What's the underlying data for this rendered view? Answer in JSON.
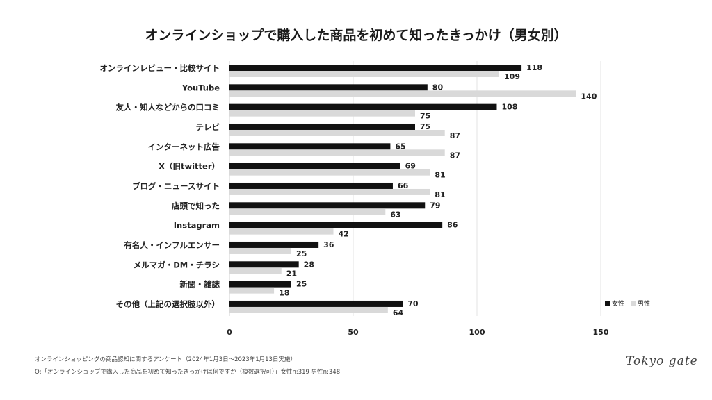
{
  "chart_data": {
    "type": "bar",
    "orientation": "horizontal",
    "title": "オンラインショップで購入した商品を初めて知ったきっかけ（男女別）",
    "categories": [
      "オンラインレビュー・比較サイト",
      "YouTube",
      "友人・知人などからの口コミ",
      "テレビ",
      "インターネット広告",
      "X（旧twitter）",
      "ブログ・ニュースサイト",
      "店頭で知った",
      "Instagram",
      "有名人・インフルエンサー",
      "メルマガ・DM・チラシ",
      "新聞・雑誌",
      "その他（上記の選択肢以外）"
    ],
    "series": [
      {
        "name": "女性",
        "color": "#111111",
        "values": [
          118,
          80,
          108,
          75,
          65,
          69,
          66,
          79,
          86,
          36,
          28,
          25,
          70
        ]
      },
      {
        "name": "男性",
        "color": "#d9d9d9",
        "values": [
          109,
          140,
          75,
          87,
          87,
          81,
          81,
          63,
          42,
          25,
          21,
          18,
          64
        ]
      }
    ],
    "xlim": [
      0,
      150
    ],
    "xticks": [
      0,
      50,
      100,
      150
    ],
    "grid": true,
    "legend_position": "bottom-right",
    "data_labels": true
  },
  "footer": {
    "survey": "オンラインショッピングの商品認知に関するアンケート（2024年1月3日〜2023年1月13日実施）",
    "question": "Q:「オンラインショップで購入した商品を初めて知ったきっかけは何ですか（複数選択可）」女性n:319 男性n:348"
  },
  "logo": "Tokyo gate"
}
